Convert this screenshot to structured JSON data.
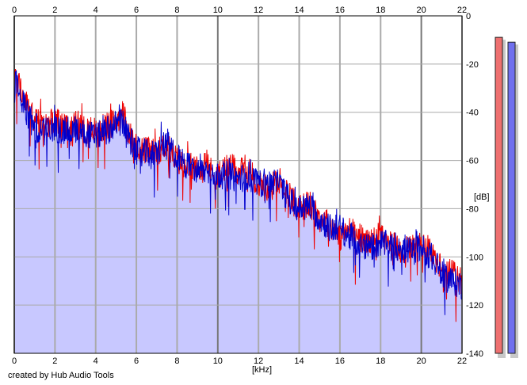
{
  "chart_data": {
    "type": "line",
    "title": "",
    "xlabel": "[kHz]",
    "ylabel": "[dB]",
    "xlim": [
      0,
      22
    ],
    "ylim": [
      -140,
      0
    ],
    "x_ticks": [
      "0",
      "2",
      "4",
      "6",
      "8",
      "10",
      "12",
      "14",
      "16",
      "18",
      "20",
      "22"
    ],
    "y_ticks": [
      "0",
      "-20",
      "-40",
      "-60",
      "-80",
      "-100",
      "-120",
      "-140"
    ],
    "grid": true,
    "legend": "none",
    "series": [
      {
        "color": "#ee0000",
        "x": [
          0,
          0.2,
          0.4,
          0.6,
          0.8,
          1.0,
          1.5,
          2.0,
          2.5,
          3.0,
          3.5,
          4.0,
          4.5,
          5.0,
          5.3,
          5.6,
          6.0,
          6.5,
          7.0,
          7.5,
          8.0,
          8.5,
          9.0,
          9.5,
          10.0,
          10.5,
          11.0,
          11.5,
          12.0,
          12.5,
          13.0,
          13.5,
          14.0,
          14.5,
          15.0,
          15.5,
          16.0,
          16.5,
          17.0,
          17.5,
          18.0,
          18.5,
          19.0,
          19.5,
          20.0,
          20.5,
          21.0,
          21.5,
          22.0
        ],
        "values": [
          -26,
          -27,
          -33,
          -37,
          -40,
          -43,
          -45,
          -44,
          -46,
          -45,
          -47,
          -48,
          -46,
          -44,
          -40,
          -48,
          -55,
          -56,
          -57,
          -53,
          -60,
          -62,
          -64,
          -63,
          -67,
          -62,
          -65,
          -64,
          -70,
          -72,
          -68,
          -74,
          -80,
          -78,
          -84,
          -86,
          -92,
          -89,
          -92,
          -94,
          -92,
          -95,
          -97,
          -96,
          -95,
          -98,
          -105,
          -107,
          -110
        ]
      },
      {
        "color": "#0000cc",
        "x": [
          0,
          0.2,
          0.4,
          0.6,
          0.8,
          1.0,
          1.5,
          2.0,
          2.5,
          3.0,
          3.5,
          4.0,
          4.5,
          5.0,
          5.3,
          5.6,
          6.0,
          6.5,
          7.0,
          7.5,
          8.0,
          8.5,
          9.0,
          9.5,
          10.0,
          10.5,
          11.0,
          11.5,
          12.0,
          12.5,
          13.0,
          13.5,
          14.0,
          14.5,
          15.0,
          15.5,
          16.0,
          16.5,
          17.0,
          17.5,
          18.0,
          18.5,
          19.0,
          19.5,
          20.0,
          20.5,
          21.0,
          21.5,
          22.0
        ],
        "values": [
          -27,
          -28,
          -36,
          -40,
          -43,
          -46,
          -48,
          -47,
          -48,
          -47,
          -49,
          -50,
          -48,
          -45,
          -44,
          -50,
          -56,
          -57,
          -57,
          -52,
          -59,
          -62,
          -65,
          -64,
          -66,
          -66,
          -68,
          -66,
          -70,
          -68,
          -70,
          -76,
          -80,
          -79,
          -84,
          -88,
          -88,
          -92,
          -95,
          -96,
          -94,
          -96,
          -95,
          -98,
          -96,
          -100,
          -108,
          -110,
          -112
        ]
      }
    ],
    "fill_color": "#c8c8ff",
    "level_meters": [
      {
        "color": "#ee7070",
        "level_db": -3
      },
      {
        "color": "#7070ee",
        "level_db": -5
      }
    ]
  },
  "footer": {
    "credit": "created by Hub Audio Tools"
  }
}
